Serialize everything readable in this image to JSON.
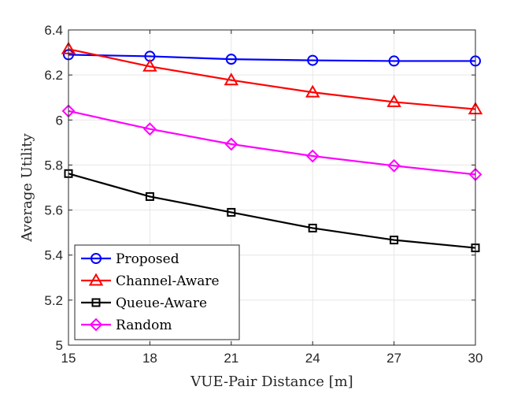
{
  "chart_data": {
    "type": "line",
    "title": "",
    "xlabel": "VUE-Pair Distance [m]",
    "ylabel": "Average Utility",
    "x": [
      15,
      18,
      21,
      24,
      27,
      30
    ],
    "xlim": [
      15,
      30
    ],
    "ylim": [
      5,
      6.4
    ],
    "xticks": [
      "15",
      "18",
      "21",
      "24",
      "27",
      "30"
    ],
    "yticks": [
      "5",
      "5.2",
      "5.4",
      "5.6",
      "5.8",
      "6",
      "6.2",
      "6.4"
    ],
    "grid": true,
    "legend_position": "bottom-left",
    "series": [
      {
        "name": "Proposed",
        "color": "#0000ff",
        "marker": "circle",
        "values": [
          6.29,
          6.283,
          6.27,
          6.265,
          6.262,
          6.262
        ]
      },
      {
        "name": "Channel-Aware",
        "color": "#ff0000",
        "marker": "triangle",
        "values": [
          6.315,
          6.238,
          6.177,
          6.123,
          6.08,
          6.048
        ]
      },
      {
        "name": "Queue-Aware",
        "color": "#000000",
        "marker": "square",
        "values": [
          5.762,
          5.66,
          5.59,
          5.52,
          5.467,
          5.432
        ]
      },
      {
        "name": "Random",
        "color": "#ff00ff",
        "marker": "diamond",
        "values": [
          6.04,
          5.96,
          5.893,
          5.84,
          5.797,
          5.758
        ]
      }
    ]
  }
}
